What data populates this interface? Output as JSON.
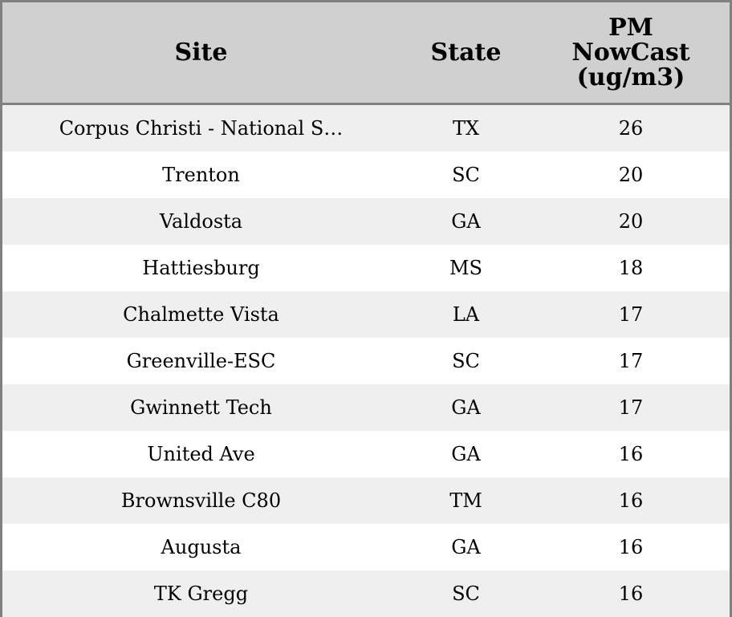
{
  "table": {
    "header": [
      "Site",
      "State",
      "PM NowCast (ug/m3)"
    ],
    "rows": [
      [
        "Corpus Christi - National S…",
        "TX",
        26
      ],
      [
        "Trenton",
        "SC",
        20
      ],
      [
        "Valdosta",
        "GA",
        20
      ],
      [
        "Hattiesburg",
        "MS",
        18
      ],
      [
        "Chalmette Vista",
        "LA",
        17
      ],
      [
        "Greenville-ESC",
        "SC",
        17
      ],
      [
        "Gwinnett Tech",
        "GA",
        17
      ],
      [
        "United Ave",
        "GA",
        16
      ],
      [
        "Brownsville C80",
        "TM",
        16
      ],
      [
        "Augusta",
        "GA",
        16
      ],
      [
        "TK Gregg",
        "SC",
        16
      ]
    ]
  }
}
